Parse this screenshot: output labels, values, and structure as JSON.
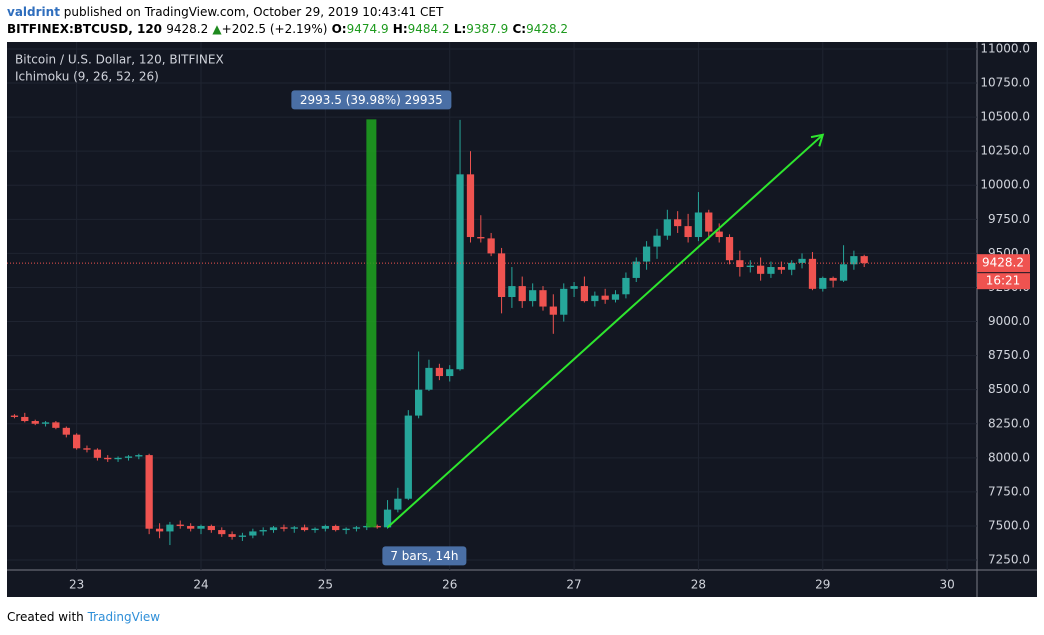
{
  "header": {
    "author": "valdrint",
    "published": "published on TradingView.com, October 29, 2019 10:43:41 CET",
    "symbol": "BITFINEX:BTCUSD, 120",
    "last": "9428.2",
    "change": "+202.5 (+2.19%)",
    "o_label": "O:",
    "o": "9474.9",
    "h_label": "H:",
    "h": "9484.2",
    "l_label": "L:",
    "l": "9387.9",
    "c_label": "C:",
    "c": "9428.2"
  },
  "footer": {
    "created": "Created with",
    "brand": "TradingView"
  },
  "chart_data": {
    "type": "candlestick",
    "title": "Bitcoin / U.S. Dollar, 120, BITFINEX",
    "subtitle": "Ichimoku (9, 26, 52, 26)",
    "up_color": "#26a69a",
    "down_color": "#ef5350",
    "grid": true,
    "xlim": [
      22.44,
      30.24
    ],
    "xticks": [
      23,
      24,
      25,
      26,
      27,
      28,
      29,
      30
    ],
    "ylim": [
      7177,
      11051
    ],
    "yticks": [
      {
        "value": 7250,
        "label": "7250.0"
      },
      {
        "value": 7500,
        "label": "7500.0"
      },
      {
        "value": 7750,
        "label": "7750.0"
      },
      {
        "value": 8000,
        "label": "8000.0"
      },
      {
        "value": 8250,
        "label": "8250.0"
      },
      {
        "value": 8500,
        "label": "8500.0"
      },
      {
        "value": 8750,
        "label": "8750.0"
      },
      {
        "value": 9000,
        "label": "9000.0"
      },
      {
        "value": 9250,
        "label": "9250.0"
      },
      {
        "value": 9500,
        "label": "9500.0"
      },
      {
        "value": 9750,
        "label": "9750.0"
      },
      {
        "value": 10000,
        "label": "10000.0"
      },
      {
        "value": 10250,
        "label": "10250.0"
      },
      {
        "value": 10500,
        "label": "10500.0"
      },
      {
        "value": 10750,
        "label": "10750.0"
      },
      {
        "value": 11000,
        "label": "11000.0"
      }
    ],
    "x": [
      22.5,
      22.583,
      22.667,
      22.75,
      22.833,
      22.917,
      23,
      23.083,
      23.167,
      23.25,
      23.333,
      23.417,
      23.5,
      23.583,
      23.667,
      23.75,
      23.833,
      23.917,
      24,
      24.083,
      24.167,
      24.25,
      24.333,
      24.417,
      24.5,
      24.583,
      24.667,
      24.75,
      24.833,
      24.917,
      25,
      25.083,
      25.167,
      25.25,
      25.333,
      25.417,
      25.5,
      25.583,
      25.667,
      25.75,
      25.833,
      25.917,
      26,
      26.083,
      26.167,
      26.25,
      26.333,
      26.417,
      26.5,
      26.583,
      26.667,
      26.75,
      26.833,
      26.917,
      27,
      27.083,
      27.167,
      27.25,
      27.333,
      27.417,
      27.5,
      27.583,
      27.667,
      27.75,
      27.833,
      27.917,
      28,
      28.083,
      28.167,
      28.25,
      28.333,
      28.417,
      28.5,
      28.583,
      28.667,
      28.75,
      28.833,
      28.917,
      29,
      29.083,
      29.167,
      29.25,
      29.333
    ],
    "open": [
      8310,
      8300,
      8270,
      8250,
      8260,
      8220,
      8170,
      8070,
      8060,
      8000,
      7990,
      8000,
      8010,
      8020,
      7480,
      7460,
      7510,
      7500,
      7480,
      7500,
      7470,
      7440,
      7420,
      7430,
      7460,
      7470,
      7490,
      7480,
      7490,
      7470,
      7480,
      7500,
      7470,
      7480,
      7490,
      7500,
      7490,
      7620,
      7700,
      8310,
      8500,
      8660,
      8600,
      8650,
      10080,
      9620,
      9610,
      9500,
      9180,
      9260,
      9150,
      9230,
      9110,
      9050,
      9240,
      9260,
      9150,
      9190,
      9160,
      9200,
      9320,
      9440,
      9550,
      9630,
      9750,
      9700,
      9620,
      9800,
      9660,
      9620,
      9450,
      9400,
      9410,
      9350,
      9400,
      9380,
      9430,
      9460,
      9240,
      9320,
      9300,
      9420,
      9480
    ],
    "high": [
      8320,
      8330,
      8280,
      8270,
      8270,
      8230,
      8180,
      8090,
      8070,
      8020,
      8010,
      8020,
      8030,
      8030,
      7520,
      7530,
      7540,
      7520,
      7510,
      7510,
      7490,
      7460,
      7450,
      7480,
      7490,
      7500,
      7510,
      7500,
      7510,
      7490,
      7510,
      7510,
      7490,
      7500,
      7520,
      7510,
      7690,
      7780,
      8350,
      8780,
      8720,
      8690,
      8680,
      10480,
      10250,
      9780,
      9650,
      9540,
      9400,
      9330,
      9280,
      9260,
      9200,
      9280,
      9290,
      9330,
      9220,
      9240,
      9230,
      9360,
      9470,
      9590,
      9680,
      9820,
      9810,
      9790,
      9950,
      9820,
      9720,
      9640,
      9520,
      9450,
      9470,
      9440,
      9440,
      9450,
      9500,
      9510,
      9330,
      9330,
      9560,
      9520,
      9490
    ],
    "low": [
      8290,
      8260,
      8240,
      8230,
      8210,
      8150,
      8060,
      8040,
      7980,
      7970,
      7970,
      7980,
      7990,
      7440,
      7410,
      7360,
      7480,
      7460,
      7440,
      7450,
      7420,
      7400,
      7390,
      7410,
      7430,
      7450,
      7460,
      7450,
      7460,
      7450,
      7460,
      7460,
      7440,
      7460,
      7470,
      7480,
      7480,
      7600,
      7690,
      8290,
      8490,
      8570,
      8560,
      8640,
      9580,
      9580,
      9480,
      9060,
      9100,
      9100,
      9110,
      9080,
      8910,
      9000,
      9180,
      9140,
      9110,
      9130,
      9140,
      9170,
      9290,
      9380,
      9460,
      9600,
      9650,
      9580,
      9590,
      9600,
      9580,
      9420,
      9330,
      9360,
      9300,
      9320,
      9350,
      9340,
      9390,
      9230,
      9220,
      9250,
      9290,
      9380,
      9400
    ],
    "close": [
      8300,
      8270,
      8250,
      8260,
      8220,
      8170,
      8070,
      8060,
      8000,
      7990,
      8000,
      8010,
      8020,
      7480,
      7460,
      7510,
      7500,
      7480,
      7500,
      7470,
      7440,
      7420,
      7430,
      7460,
      7470,
      7490,
      7480,
      7490,
      7470,
      7480,
      7500,
      7470,
      7480,
      7490,
      7500,
      7490,
      7620,
      7700,
      8310,
      8500,
      8660,
      8600,
      8650,
      10080,
      9620,
      9610,
      9500,
      9180,
      9260,
      9150,
      9230,
      9110,
      9050,
      9240,
      9260,
      9150,
      9190,
      9160,
      9200,
      9320,
      9440,
      9550,
      9630,
      9750,
      9700,
      9620,
      9800,
      9660,
      9620,
      9450,
      9400,
      9410,
      9350,
      9400,
      9380,
      9430,
      9460,
      9240,
      9320,
      9300,
      9420,
      9480,
      9428.2
    ],
    "last_price": {
      "value": 9428.2,
      "label": "9428.2",
      "countdown": "16:21"
    },
    "measure": {
      "x": 25.37,
      "low": 7490,
      "high": 10483.5,
      "label": "2993.5 (39.98%) 29935",
      "bars_label": "7 bars, 14h",
      "color": "#1fa51f"
    },
    "trend_line": {
      "x": [
        25.5,
        29.0
      ],
      "y": [
        7490,
        10370
      ],
      "color": "#2ee62e"
    }
  }
}
